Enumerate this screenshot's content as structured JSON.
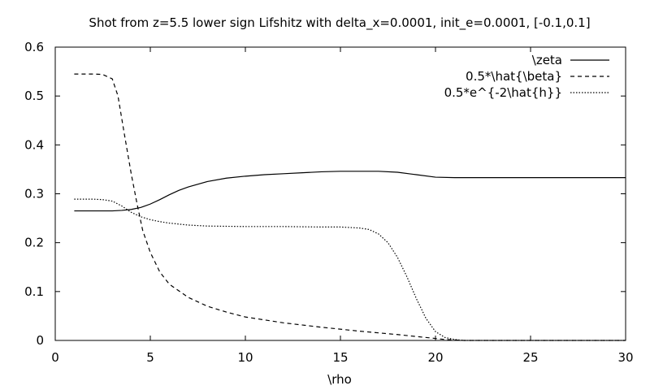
{
  "chart_data": {
    "type": "line",
    "title": "Shot from z=5.5 lower sign Lifshitz with delta_x=0.0001, init_e=0.0001, [-0.1,0.1]",
    "xlabel": "\\rho",
    "ylabel": "",
    "xlim": [
      0,
      30
    ],
    "ylim": [
      0,
      0.6
    ],
    "xticks": [
      0,
      5,
      10,
      15,
      20,
      25,
      30
    ],
    "yticks": [
      0,
      0.1,
      0.2,
      0.3,
      0.4,
      0.5,
      0.6
    ],
    "xtick_labels": [
      "0",
      "5",
      "10",
      "15",
      "20",
      "25",
      "30"
    ],
    "ytick_labels": [
      "0",
      "0.1",
      "0.2",
      "0.3",
      "0.4",
      "0.5",
      "0.6"
    ],
    "grid": false,
    "legend_position": "top-right",
    "series": [
      {
        "name": "\\zeta",
        "style": "solid",
        "x": [
          1,
          2,
          3,
          3.5,
          4,
          4.5,
          5,
          5.5,
          6,
          6.5,
          7,
          8,
          9,
          10,
          11,
          12,
          13,
          14,
          15,
          16,
          17,
          18,
          19,
          20,
          21,
          22,
          25,
          30
        ],
        "y": [
          0.265,
          0.265,
          0.265,
          0.266,
          0.268,
          0.272,
          0.279,
          0.288,
          0.298,
          0.307,
          0.314,
          0.325,
          0.332,
          0.336,
          0.339,
          0.341,
          0.343,
          0.345,
          0.346,
          0.346,
          0.346,
          0.344,
          0.339,
          0.334,
          0.333,
          0.333,
          0.333,
          0.333
        ]
      },
      {
        "name": "0.5*\\hat{\\beta}",
        "style": "dashed",
        "x": [
          1,
          2,
          2.5,
          3,
          3.3,
          3.6,
          4,
          4.3,
          4.6,
          5,
          5.5,
          6,
          7,
          8,
          9,
          10,
          12,
          14,
          16,
          18,
          19,
          20,
          20.5,
          21,
          21.5,
          22,
          25,
          30
        ],
        "y": [
          0.545,
          0.545,
          0.544,
          0.535,
          0.5,
          0.43,
          0.34,
          0.28,
          0.225,
          0.18,
          0.14,
          0.115,
          0.088,
          0.07,
          0.058,
          0.048,
          0.036,
          0.027,
          0.019,
          0.012,
          0.008,
          0.004,
          0.002,
          0.001,
          0.0,
          0.0,
          0.0,
          0.0
        ]
      },
      {
        "name": "0.5*e^{-2\\hat{h}}",
        "style": "dotted",
        "x": [
          1,
          2,
          2.5,
          3,
          3.5,
          4,
          4.5,
          5,
          5.5,
          6,
          7,
          8,
          10,
          12,
          14,
          15,
          16,
          16.5,
          17,
          17.5,
          18,
          18.5,
          19,
          19.5,
          20,
          20.5,
          21,
          21.5,
          22,
          25,
          30
        ],
        "y": [
          0.289,
          0.289,
          0.288,
          0.285,
          0.275,
          0.262,
          0.253,
          0.247,
          0.243,
          0.24,
          0.236,
          0.234,
          0.233,
          0.233,
          0.232,
          0.232,
          0.23,
          0.227,
          0.218,
          0.2,
          0.17,
          0.13,
          0.085,
          0.045,
          0.018,
          0.006,
          0.002,
          0.0,
          0.0,
          0.0,
          0.0
        ]
      }
    ]
  }
}
